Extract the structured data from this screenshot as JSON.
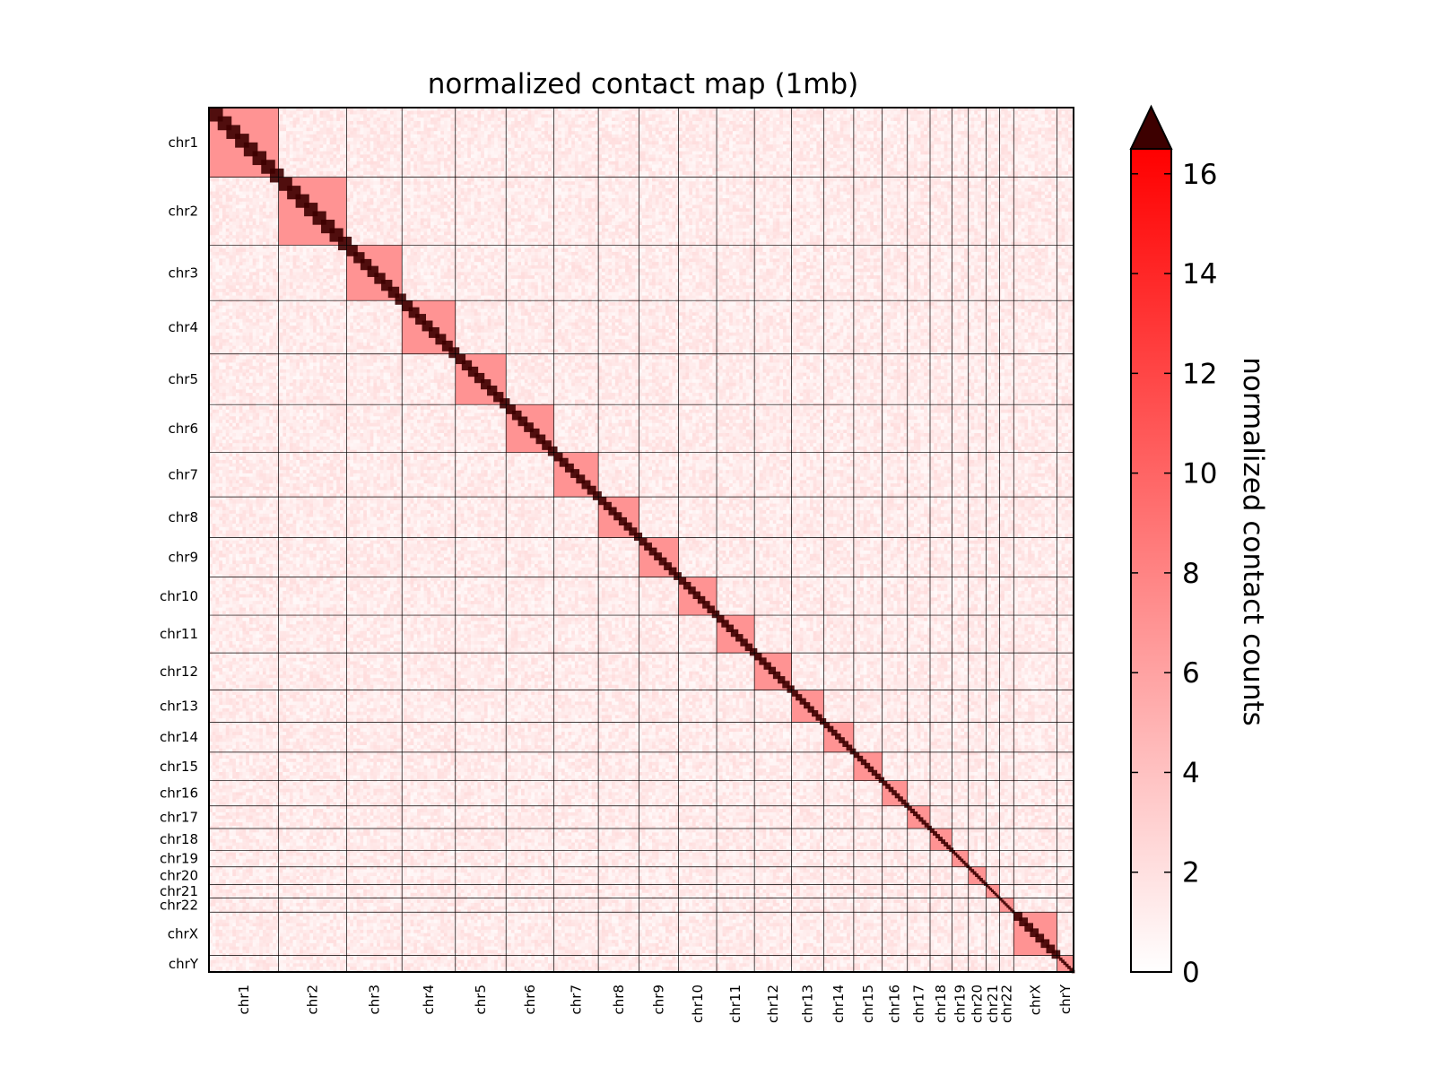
{
  "chart_data": {
    "type": "heatmap",
    "title": "normalized contact map (1mb)",
    "resolution_label": "1mb",
    "chromosomes": [
      {
        "name": "chr1",
        "size_mb": 249
      },
      {
        "name": "chr2",
        "size_mb": 243
      },
      {
        "name": "chr3",
        "size_mb": 198
      },
      {
        "name": "chr4",
        "size_mb": 191
      },
      {
        "name": "chr5",
        "size_mb": 181
      },
      {
        "name": "chr6",
        "size_mb": 171
      },
      {
        "name": "chr7",
        "size_mb": 159
      },
      {
        "name": "chr8",
        "size_mb": 146
      },
      {
        "name": "chr9",
        "size_mb": 141
      },
      {
        "name": "chr10",
        "size_mb": 136
      },
      {
        "name": "chr11",
        "size_mb": 135
      },
      {
        "name": "chr12",
        "size_mb": 133
      },
      {
        "name": "chr13",
        "size_mb": 115
      },
      {
        "name": "chr14",
        "size_mb": 107
      },
      {
        "name": "chr15",
        "size_mb": 102
      },
      {
        "name": "chr16",
        "size_mb": 90
      },
      {
        "name": "chr17",
        "size_mb": 81
      },
      {
        "name": "chr18",
        "size_mb": 78
      },
      {
        "name": "chr19",
        "size_mb": 59
      },
      {
        "name": "chr20",
        "size_mb": 63
      },
      {
        "name": "chr21",
        "size_mb": 48
      },
      {
        "name": "chr22",
        "size_mb": 51
      },
      {
        "name": "chrX",
        "size_mb": 155
      },
      {
        "name": "chrY",
        "size_mb": 59
      }
    ],
    "colorbar": {
      "label": "normalized contact counts",
      "min": 0,
      "max": 16.5,
      "ticks": [
        0,
        2,
        4,
        6,
        8,
        10,
        12,
        14,
        16
      ],
      "extend": "max",
      "colormap": [
        "#ffffff",
        "#ff0000"
      ],
      "over_color": "#3d0000"
    },
    "diagonal_color": "#3d0000",
    "background_contact_level": 1,
    "grid": true,
    "legend": "colorbar-right"
  }
}
